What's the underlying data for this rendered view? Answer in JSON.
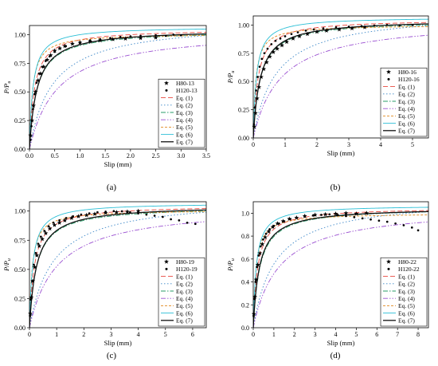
{
  "figure": {
    "y_axis_label": "P/P",
    "y_axis_label_sub": "u",
    "x_axis_label": "Slip (mm)"
  },
  "chart_data": [
    {
      "type": "line",
      "caption": "(a)",
      "xlabel": "Slip (mm)",
      "ylabel": "P/Pu",
      "xlim": [
        0,
        3.5
      ],
      "ylim": [
        0,
        1.08
      ],
      "xticks": [
        "0.0",
        "0.5",
        "1.0",
        "1.5",
        "2.0",
        "2.5",
        "3.0",
        "3.5"
      ],
      "yticks": [
        "0.00",
        "0.25",
        "0.50",
        "0.75",
        "1.00"
      ],
      "legend_position": "right-lower",
      "scatter": [
        {
          "name": "H80-13",
          "marker": "star",
          "x": [
            0.02,
            0.05,
            0.08,
            0.12,
            0.17,
            0.22,
            0.28,
            0.35,
            0.42,
            0.5,
            0.6,
            0.7,
            0.85,
            1.0,
            1.2,
            1.4,
            1.65,
            1.9,
            2.2,
            2.5
          ],
          "y": [
            0.12,
            0.25,
            0.38,
            0.5,
            0.6,
            0.66,
            0.72,
            0.78,
            0.82,
            0.86,
            0.88,
            0.9,
            0.92,
            0.93,
            0.94,
            0.95,
            0.96,
            0.965,
            0.97,
            0.975
          ]
        },
        {
          "name": "H120-13",
          "marker": "dot",
          "x": [
            0.02,
            0.04,
            0.07,
            0.1,
            0.14,
            0.19,
            0.25,
            0.32,
            0.4,
            0.5,
            0.6,
            0.72,
            0.85,
            1.0,
            1.2,
            1.4,
            1.6,
            1.8,
            2.0,
            2.2,
            2.5,
            2.7,
            2.85,
            3.0
          ],
          "y": [
            0.08,
            0.2,
            0.35,
            0.48,
            0.58,
            0.66,
            0.72,
            0.77,
            0.81,
            0.85,
            0.88,
            0.9,
            0.92,
            0.935,
            0.95,
            0.96,
            0.97,
            0.98,
            0.985,
            0.99,
            0.995,
            0.99,
            1.0,
            0.995
          ]
        }
      ],
      "series": [
        {
          "name": "Eq. (1)",
          "k": 0.1,
          "a": 1.05,
          "color": "#e8473e",
          "dash": "6,3"
        },
        {
          "name": "Eq. (2)",
          "k": 0.45,
          "a": 1.12,
          "color": "#3a86c8",
          "dash": "1.5,2.5"
        },
        {
          "name": "Eq. (3)",
          "k": 0.15,
          "a": 1.04,
          "color": "#2a9d6a",
          "dash": "6,2,1.5,2"
        },
        {
          "name": "Eq. (4)",
          "k": 0.55,
          "a": 1.05,
          "color": "#9a4fd1",
          "dash": "6,2,1.5,2,1.5,2"
        },
        {
          "name": "Eq. (5)",
          "k": 0.06,
          "a": 1.01,
          "color": "#e08a1e",
          "dash": "3,2"
        },
        {
          "name": "Eq. (6)",
          "k": 0.07,
          "a": 1.07,
          "color": "#2bbfd6",
          "dash": ""
        },
        {
          "name": "Eq. (7)",
          "k": 0.15,
          "a": 1.05,
          "color": "#111111",
          "dash": "",
          "width": 1.3
        }
      ]
    },
    {
      "type": "line",
      "caption": "(b)",
      "xlabel": "Slip (mm)",
      "ylabel": "P/Pu",
      "xlim": [
        0,
        5.5
      ],
      "ylim": [
        0,
        1.08
      ],
      "xticks": [
        "0",
        "1",
        "2",
        "3",
        "4",
        "5"
      ],
      "yticks": [
        "0.00",
        "0.25",
        "0.50",
        "0.75",
        "1.00"
      ],
      "legend_position": "right-lower",
      "scatter": [
        {
          "name": "H80-16",
          "marker": "star",
          "x": [
            0.03,
            0.07,
            0.12,
            0.18,
            0.25,
            0.33,
            0.42,
            0.52,
            0.63,
            0.75,
            0.9,
            1.05,
            1.25,
            1.45,
            1.7,
            2.0,
            2.3,
            2.7,
            3.1,
            3.5
          ],
          "y": [
            0.1,
            0.22,
            0.35,
            0.45,
            0.54,
            0.61,
            0.67,
            0.72,
            0.76,
            0.79,
            0.82,
            0.85,
            0.88,
            0.9,
            0.92,
            0.94,
            0.95,
            0.96,
            0.97,
            0.98
          ]
        },
        {
          "name": "H120-16",
          "marker": "dot",
          "x": [
            0.02,
            0.05,
            0.09,
            0.14,
            0.2,
            0.27,
            0.35,
            0.45,
            0.57,
            0.7,
            0.85,
            1.0,
            1.2,
            1.4,
            1.65,
            1.9,
            2.2,
            2.6,
            3.0,
            3.4,
            3.8,
            4.2,
            4.6,
            5.0
          ],
          "y": [
            0.12,
            0.27,
            0.42,
            0.54,
            0.63,
            0.7,
            0.75,
            0.79,
            0.83,
            0.86,
            0.88,
            0.9,
            0.92,
            0.935,
            0.95,
            0.96,
            0.97,
            0.98,
            0.985,
            0.99,
            0.995,
            1.0,
            0.995,
            1.0
          ]
        }
      ],
      "series": [
        {
          "name": "Eq. (1)",
          "k": 0.15,
          "a": 1.05,
          "color": "#e8473e",
          "dash": "6,3"
        },
        {
          "name": "Eq. (2)",
          "k": 0.7,
          "a": 1.12,
          "color": "#3a86c8",
          "dash": "1.5,2.5"
        },
        {
          "name": "Eq. (3)",
          "k": 0.22,
          "a": 1.04,
          "color": "#2a9d6a",
          "dash": "6,2,1.5,2"
        },
        {
          "name": "Eq. (4)",
          "k": 0.85,
          "a": 1.05,
          "color": "#9a4fd1",
          "dash": "6,2,1.5,2,1.5,2"
        },
        {
          "name": "Eq. (5)",
          "k": 0.08,
          "a": 1.0,
          "color": "#e08a1e",
          "dash": "3,2"
        },
        {
          "name": "Eq. (6)",
          "k": 0.1,
          "a": 1.07,
          "color": "#2bbfd6",
          "dash": ""
        },
        {
          "name": "Eq. (7)",
          "k": 0.22,
          "a": 1.05,
          "color": "#111111",
          "dash": "",
          "width": 1.3
        }
      ]
    },
    {
      "type": "line",
      "caption": "(c)",
      "xlabel": "Slip (mm)",
      "ylabel": "P/Pu",
      "xlim": [
        0,
        6.5
      ],
      "ylim": [
        0,
        1.08
      ],
      "xticks": [
        "0",
        "1",
        "2",
        "3",
        "4",
        "5",
        "6"
      ],
      "yticks": [
        "0.00",
        "0.25",
        "0.50",
        "0.75",
        "1.00"
      ],
      "legend_position": "right-lower",
      "scatter": [
        {
          "name": "H80-19",
          "marker": "star",
          "x": [
            0.03,
            0.07,
            0.12,
            0.19,
            0.27,
            0.36,
            0.47,
            0.6,
            0.75,
            0.92,
            1.1,
            1.3,
            1.55,
            1.8,
            2.1,
            2.4,
            2.8,
            3.2,
            3.6,
            4.0
          ],
          "y": [
            0.12,
            0.26,
            0.4,
            0.52,
            0.62,
            0.7,
            0.76,
            0.81,
            0.85,
            0.88,
            0.9,
            0.92,
            0.94,
            0.955,
            0.965,
            0.975,
            0.985,
            0.99,
            0.995,
            1.0
          ]
        },
        {
          "name": "H120-19",
          "marker": "dot",
          "x": [
            0.02,
            0.05,
            0.1,
            0.16,
            0.23,
            0.32,
            0.42,
            0.55,
            0.7,
            0.88,
            1.1,
            1.35,
            1.6,
            1.9,
            2.2,
            2.5,
            2.8,
            3.1,
            3.4,
            3.7,
            4.0,
            4.3,
            4.6,
            4.9,
            5.2,
            5.5,
            5.8,
            6.1
          ],
          "y": [
            0.1,
            0.24,
            0.4,
            0.54,
            0.64,
            0.72,
            0.78,
            0.83,
            0.87,
            0.9,
            0.92,
            0.94,
            0.955,
            0.97,
            0.98,
            0.99,
            0.995,
            1.0,
            0.998,
            0.99,
            0.98,
            0.97,
            0.96,
            0.95,
            0.93,
            0.92,
            0.9,
            0.89
          ]
        }
      ],
      "series": [
        {
          "name": "Eq. (1)",
          "k": 0.18,
          "a": 1.05,
          "color": "#e8473e",
          "dash": "6,3"
        },
        {
          "name": "Eq. (2)",
          "k": 0.85,
          "a": 1.12,
          "color": "#3a86c8",
          "dash": "1.5,2.5"
        },
        {
          "name": "Eq. (3)",
          "k": 0.26,
          "a": 1.04,
          "color": "#2a9d6a",
          "dash": "6,2,1.5,2"
        },
        {
          "name": "Eq. (4)",
          "k": 1.0,
          "a": 1.05,
          "color": "#9a4fd1",
          "dash": "6,2,1.5,2,1.5,2"
        },
        {
          "name": "Eq. (5)",
          "k": 0.1,
          "a": 1.01,
          "color": "#e08a1e",
          "dash": "3,2"
        },
        {
          "name": "Eq. (6)",
          "k": 0.12,
          "a": 1.07,
          "color": "#2bbfd6",
          "dash": ""
        },
        {
          "name": "Eq. (7)",
          "k": 0.26,
          "a": 1.05,
          "color": "#111111",
          "dash": "",
          "width": 1.3
        }
      ]
    },
    {
      "type": "line",
      "caption": "(d)",
      "xlabel": "Slip (mm)",
      "ylabel": "P/Pu",
      "xlim": [
        0,
        8.5
      ],
      "ylim": [
        0,
        1.1
      ],
      "xticks": [
        "0",
        "1",
        "2",
        "3",
        "4",
        "5",
        "6",
        "7",
        "8"
      ],
      "yticks": [
        "0.0",
        "0.2",
        "0.4",
        "0.6",
        "0.8",
        "1.0"
      ],
      "legend_position": "right-lower",
      "scatter": [
        {
          "name": "H80-22",
          "marker": "star",
          "x": [
            0.03,
            0.08,
            0.14,
            0.22,
            0.32,
            0.44,
            0.58,
            0.75,
            0.95,
            1.18,
            1.45,
            1.75,
            2.1,
            2.5,
            3.0,
            3.5,
            4.0,
            4.5,
            5.0,
            5.5
          ],
          "y": [
            0.12,
            0.27,
            0.42,
            0.55,
            0.65,
            0.73,
            0.79,
            0.84,
            0.88,
            0.91,
            0.93,
            0.95,
            0.96,
            0.975,
            0.985,
            0.99,
            0.995,
            1.0,
            0.995,
            1.0
          ]
        },
        {
          "name": "H120-22",
          "marker": "dot",
          "x": [
            0.02,
            0.06,
            0.11,
            0.18,
            0.26,
            0.36,
            0.48,
            0.62,
            0.8,
            1.0,
            1.25,
            1.5,
            1.8,
            2.1,
            2.5,
            2.9,
            3.3,
            3.7,
            4.1,
            4.5,
            4.9,
            5.3,
            5.7,
            6.1,
            6.5,
            6.9,
            7.3,
            7.7,
            8.0
          ],
          "y": [
            0.1,
            0.25,
            0.4,
            0.53,
            0.63,
            0.71,
            0.77,
            0.82,
            0.86,
            0.89,
            0.91,
            0.93,
            0.95,
            0.96,
            0.97,
            0.98,
            0.985,
            0.99,
            0.985,
            0.975,
            0.965,
            0.955,
            0.945,
            0.935,
            0.925,
            0.91,
            0.895,
            0.875,
            0.85
          ]
        }
      ],
      "series": [
        {
          "name": "Eq. (1)",
          "k": 0.22,
          "a": 1.05,
          "color": "#e8473e",
          "dash": "6,3"
        },
        {
          "name": "Eq. (2)",
          "k": 1.05,
          "a": 1.14,
          "color": "#3a86c8",
          "dash": "1.5,2.5"
        },
        {
          "name": "Eq. (3)",
          "k": 0.32,
          "a": 1.05,
          "color": "#2a9d6a",
          "dash": "6,2,1.5,2"
        },
        {
          "name": "Eq. (4)",
          "k": 1.25,
          "a": 1.06,
          "color": "#9a4fd1",
          "dash": "6,2,1.5,2,1.5,2"
        },
        {
          "name": "Eq. (5)",
          "k": 0.13,
          "a": 1.0,
          "color": "#e08a1e",
          "dash": "3,2"
        },
        {
          "name": "Eq. (6)",
          "k": 0.15,
          "a": 1.07,
          "color": "#2bbfd6",
          "dash": ""
        },
        {
          "name": "Eq. (7)",
          "k": 0.3,
          "a": 1.05,
          "color": "#111111",
          "dash": "",
          "width": 1.3
        }
      ]
    }
  ]
}
